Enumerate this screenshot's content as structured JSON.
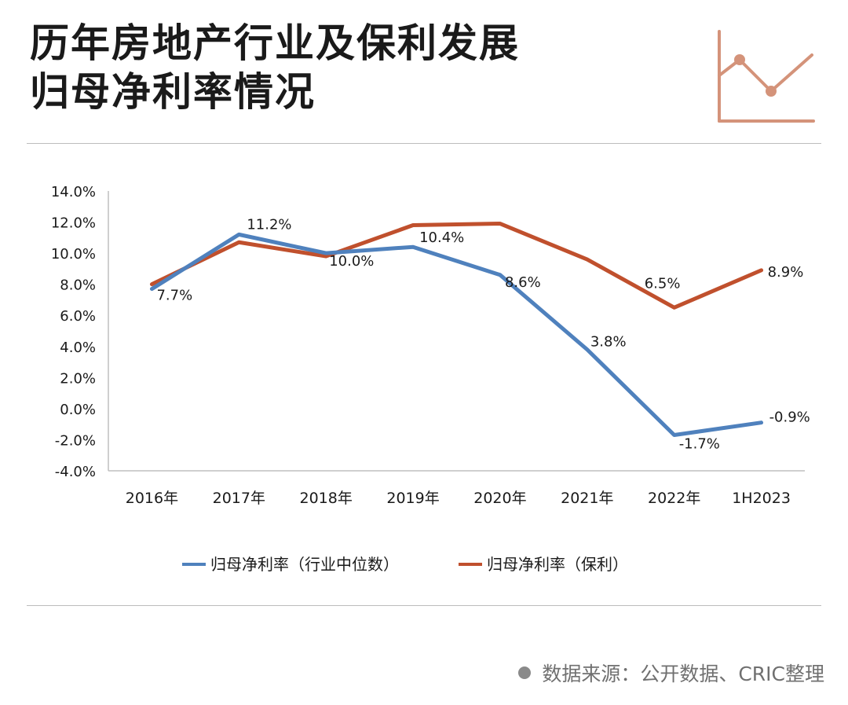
{
  "header": {
    "title_line1": "历年房地产行业及保利发展",
    "title_line2": "归母净利率情况",
    "icon": "line-chart-icon",
    "icon_color": "#d4937a"
  },
  "footer": {
    "source": "数据来源：公开数据、CRIC整理"
  },
  "colors": {
    "industry": "#4f81bd",
    "poly": "#c0502d",
    "axis": "#bfbfbf",
    "text": "#1a1a1a"
  },
  "chart_data": {
    "type": "line",
    "categories": [
      "2016年",
      "2017年",
      "2018年",
      "2019年",
      "2020年",
      "2021年",
      "2022年",
      "1H2023"
    ],
    "ylim": [
      -4.0,
      14.0
    ],
    "yticks": [
      14.0,
      12.0,
      10.0,
      8.0,
      6.0,
      4.0,
      2.0,
      0.0,
      -2.0,
      -4.0
    ],
    "ytick_labels": [
      "14.0%",
      "12.0%",
      "10.0%",
      "8.0%",
      "6.0%",
      "4.0%",
      "2.0%",
      "0.0%",
      "-2.0%",
      "-4.0%"
    ],
    "grid": false,
    "legend_position": "bottom",
    "series": [
      {
        "name": "归母净利率（行业中位数）",
        "color": "#4f81bd",
        "values": [
          7.7,
          11.2,
          10.0,
          10.4,
          8.6,
          3.8,
          -1.7,
          -0.9
        ],
        "labels": [
          "7.7%",
          "11.2%",
          "10.0%",
          "10.4%",
          "8.6%",
          "3.8%",
          "-1.7%",
          "-0.9%"
        ]
      },
      {
        "name": "归母净利率（保利）",
        "color": "#c0502d",
        "values": [
          8.0,
          10.7,
          9.8,
          11.8,
          11.9,
          9.6,
          6.5,
          8.9
        ],
        "labels": [
          "",
          "",
          "",
          "",
          "",
          "",
          "6.5%",
          "8.9%"
        ]
      }
    ]
  }
}
